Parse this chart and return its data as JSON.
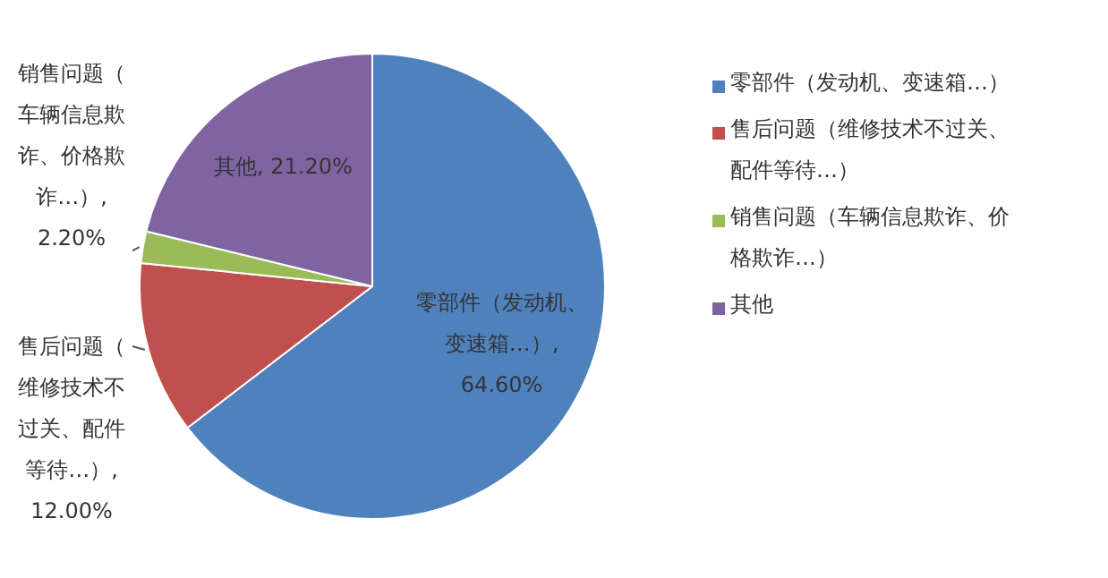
{
  "chart_data": {
    "type": "pie",
    "categories": [
      "零部件（发动机、变速箱…）",
      "售后问题（维修技术不过关、配件等待…）",
      "销售问题（车辆信息欺诈、价格欺诈…）",
      "其他"
    ],
    "values": [
      64.6,
      12.0,
      2.2,
      21.2
    ],
    "value_labels": [
      "零部件（发动机、变速箱…）, 64.60%",
      "售后问题（维修技术不过关、配件等待…）, 12.00%",
      "销售问题（车辆信息欺诈、价格欺诈…）, 2.20%",
      "其他, 21.20%"
    ],
    "colors": [
      "#4f81bd",
      "#c0504d",
      "#9bbb59",
      "#8064a2"
    ],
    "legend": "right"
  }
}
